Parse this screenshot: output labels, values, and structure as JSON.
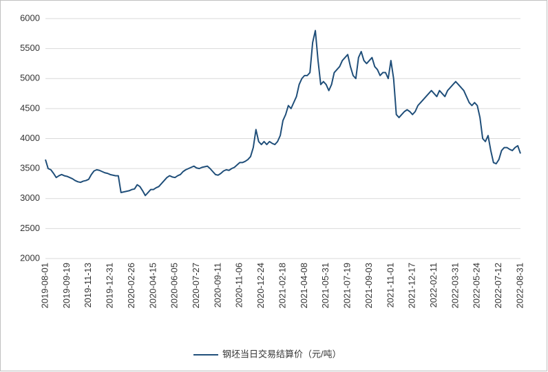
{
  "chart_data": {
    "type": "line",
    "categories": [
      "2019-08-01",
      null,
      null,
      null,
      null,
      null,
      null,
      null,
      "2019-09-19",
      null,
      null,
      null,
      null,
      null,
      null,
      null,
      "2019-11-13",
      null,
      null,
      null,
      null,
      null,
      null,
      null,
      "2019-12-31",
      null,
      null,
      null,
      null,
      null,
      null,
      null,
      "2020-02-26",
      null,
      null,
      null,
      null,
      null,
      null,
      null,
      "2020-04-15",
      null,
      null,
      null,
      null,
      null,
      null,
      null,
      "2020-06-05",
      null,
      null,
      null,
      null,
      null,
      null,
      null,
      "2020-07-27",
      null,
      null,
      null,
      null,
      null,
      null,
      null,
      "2020-09-11",
      null,
      null,
      null,
      null,
      null,
      null,
      null,
      "2020-11-06",
      null,
      null,
      null,
      null,
      null,
      null,
      null,
      "2020-12-24",
      null,
      null,
      null,
      null,
      null,
      null,
      null,
      "2021-02-18",
      null,
      null,
      null,
      null,
      null,
      null,
      null,
      "2021-04-08",
      null,
      null,
      null,
      null,
      null,
      null,
      null,
      "2021-05-31",
      null,
      null,
      null,
      null,
      null,
      null,
      null,
      "2021-07-19",
      null,
      null,
      null,
      null,
      null,
      null,
      null,
      "2021-09-03",
      null,
      null,
      null,
      null,
      null,
      null,
      null,
      "2021-11-01",
      null,
      null,
      null,
      null,
      null,
      null,
      null,
      "2021-12-17",
      null,
      null,
      null,
      null,
      null,
      null,
      null,
      "2022-02-11",
      null,
      null,
      null,
      null,
      null,
      null,
      null,
      "2022-03-31",
      null,
      null,
      null,
      null,
      null,
      null,
      null,
      "2022-05-24",
      null,
      null,
      null,
      null,
      null,
      null,
      null,
      "2022-07-12",
      null,
      null,
      null,
      null,
      null,
      null,
      null,
      "2022-08-31"
    ],
    "series": [
      {
        "name": "钢坯当日交易结算价（元/吨）",
        "color": "#1f4e79",
        "values": [
          3650,
          3500,
          3480,
          3420,
          3350,
          3380,
          3400,
          3380,
          3370,
          3350,
          3330,
          3300,
          3280,
          3270,
          3290,
          3300,
          3320,
          3400,
          3460,
          3480,
          3470,
          3450,
          3430,
          3420,
          3400,
          3390,
          3380,
          3380,
          3100,
          3110,
          3120,
          3130,
          3150,
          3160,
          3230,
          3200,
          3130,
          3050,
          3100,
          3150,
          3150,
          3180,
          3200,
          3250,
          3300,
          3350,
          3380,
          3360,
          3350,
          3380,
          3400,
          3450,
          3480,
          3500,
          3520,
          3540,
          3510,
          3500,
          3520,
          3530,
          3540,
          3500,
          3450,
          3400,
          3390,
          3420,
          3460,
          3480,
          3470,
          3500,
          3520,
          3560,
          3600,
          3600,
          3620,
          3650,
          3700,
          3850,
          4150,
          3950,
          3900,
          3950,
          3900,
          3950,
          3920,
          3900,
          3950,
          4050,
          4300,
          4400,
          4550,
          4500,
          4600,
          4700,
          4900,
          5000,
          5050,
          5050,
          5100,
          5600,
          5800,
          5300,
          4900,
          4950,
          4900,
          4800,
          4900,
          5100,
          5150,
          5200,
          5300,
          5350,
          5400,
          5200,
          5050,
          5000,
          5350,
          5450,
          5300,
          5250,
          5300,
          5350,
          5200,
          5150,
          5050,
          5100,
          5100,
          5000,
          5300,
          5000,
          4400,
          4350,
          4400,
          4450,
          4480,
          4450,
          4400,
          4450,
          4550,
          4600,
          4650,
          4700,
          4750,
          4800,
          4750,
          4700,
          4800,
          4750,
          4700,
          4800,
          4850,
          4900,
          4950,
          4900,
          4850,
          4800,
          4700,
          4600,
          4550,
          4600,
          4550,
          4350,
          4000,
          3950,
          4050,
          3800,
          3600,
          3580,
          3650,
          3800,
          3850,
          3850,
          3820,
          3800,
          3850,
          3880,
          3750
        ]
      }
    ],
    "ylim": [
      2000,
      6000
    ],
    "yticks": [
      2000,
      2500,
      3000,
      3500,
      4000,
      4500,
      5000,
      5500,
      6000
    ],
    "grid": true,
    "legend": "bottom"
  }
}
